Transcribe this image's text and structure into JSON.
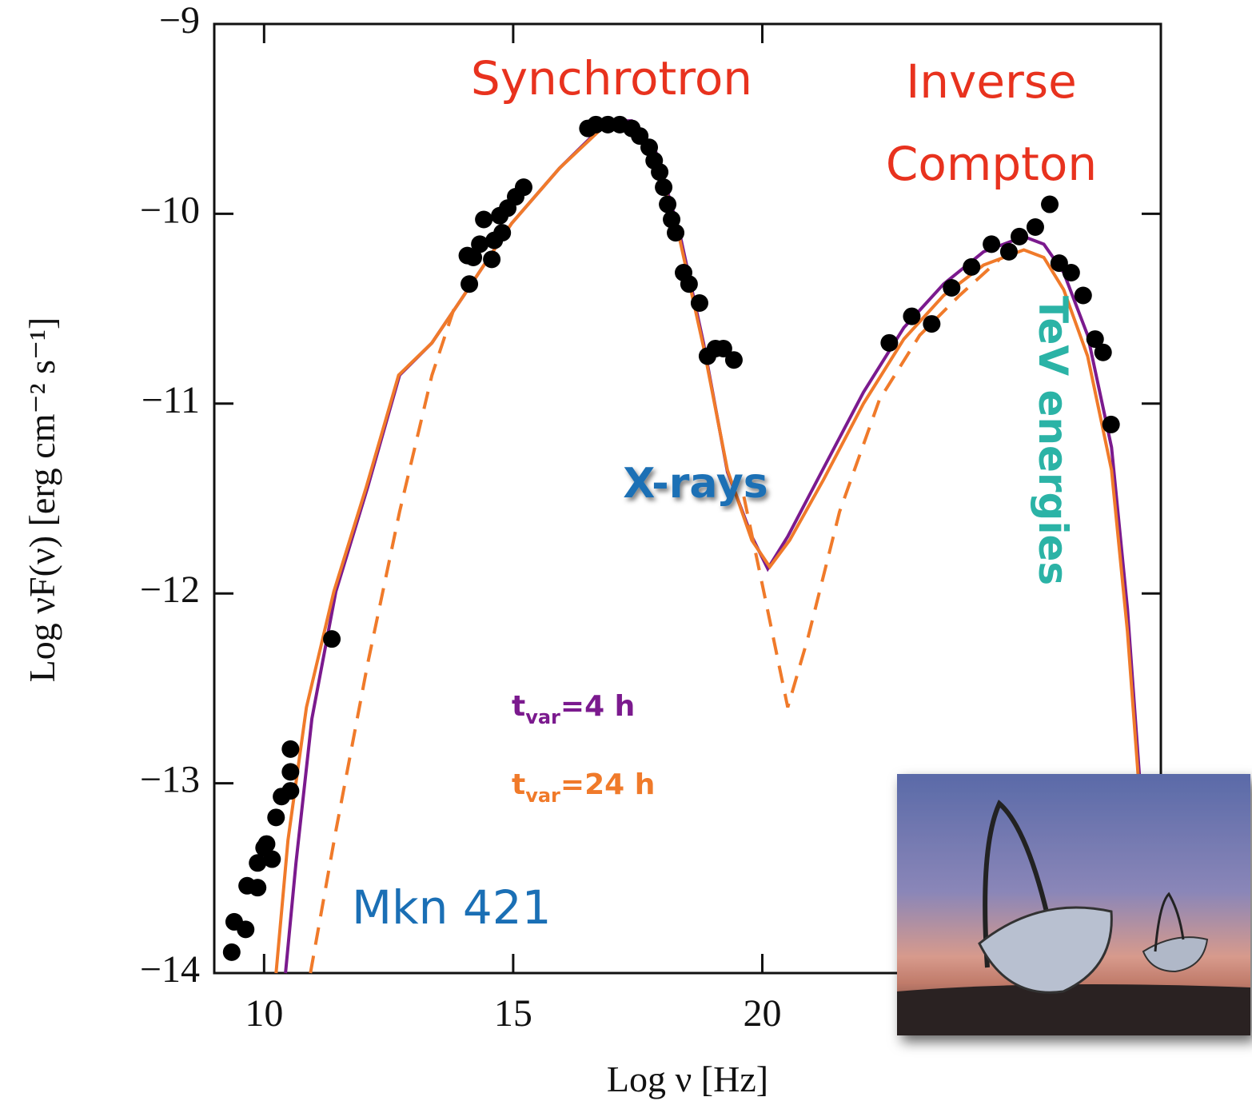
{
  "chart_data": {
    "type": "line",
    "x_label": "Log ν [Hz]",
    "y_label": "Log νF(ν) [erg cm⁻² s⁻¹]",
    "xlim": [
      9,
      28
    ],
    "ylim": [
      -14,
      -9
    ],
    "xticks": [
      10,
      15,
      20
    ],
    "yticks": [
      {
        "value": -9,
        "label": "−9"
      },
      {
        "value": -10,
        "label": "−10"
      },
      {
        "value": -11,
        "label": "−11"
      },
      {
        "value": -12,
        "label": "−12"
      },
      {
        "value": -13,
        "label": "−13"
      },
      {
        "value": -14,
        "label": "−14"
      }
    ],
    "annotations": {
      "synchrotron": "Synchrotron",
      "inverse_compton": [
        "Inverse",
        "Compton"
      ],
      "x_rays": "X-rays",
      "tev": "TeV energies",
      "source": "Mkn 421"
    },
    "points": {
      "color": "#000000",
      "x": [
        9.35,
        9.4,
        9.63,
        9.66,
        9.87,
        9.87,
        10.0,
        10.16,
        10.05,
        10.24,
        10.35,
        10.53,
        10.53,
        10.53,
        11.36,
        14.12,
        14.08,
        14.2,
        14.33,
        14.41,
        14.57,
        14.62,
        14.73,
        14.78,
        14.89,
        15.05,
        15.21,
        16.5,
        16.66,
        16.9,
        17.14,
        17.38,
        17.54,
        17.73,
        17.83,
        17.94,
        18.02,
        18.1,
        18.18,
        18.26,
        18.42,
        18.53,
        18.74,
        18.9,
        19.06,
        19.22,
        19.43,
        22.55,
        23.0,
        23.4,
        23.8,
        24.2,
        24.6,
        24.95,
        25.16,
        25.48,
        25.77,
        25.96,
        26.2,
        26.44,
        26.68,
        26.84,
        27.0
      ],
      "y": [
        -13.89,
        -13.73,
        -13.77,
        -13.54,
        -13.55,
        -13.42,
        -13.34,
        -13.4,
        -13.32,
        -13.18,
        -13.07,
        -13.04,
        -12.94,
        -12.82,
        -12.24,
        -10.37,
        -10.22,
        -10.23,
        -10.16,
        -10.03,
        -10.24,
        -10.14,
        -10.01,
        -10.1,
        -9.97,
        -9.91,
        -9.86,
        -9.55,
        -9.53,
        -9.53,
        -9.53,
        -9.55,
        -9.59,
        -9.65,
        -9.72,
        -9.78,
        -9.86,
        -9.95,
        -10.03,
        -10.1,
        -10.31,
        -10.37,
        -10.47,
        -10.75,
        -10.71,
        -10.71,
        -10.77,
        -10.68,
        -10.54,
        -10.58,
        -10.39,
        -10.28,
        -10.16,
        -10.2,
        -10.12,
        -10.07,
        -9.95,
        -10.26,
        -10.31,
        -10.43,
        -10.66,
        -10.73,
        -11.11
      ]
    },
    "series": [
      {
        "name": "t",
        "name_sub": "var",
        "name_rest": "=4 h",
        "color": "#7b1a8e",
        "style": "solid",
        "x": [
          10.43,
          10.64,
          10.96,
          11.44,
          12.08,
          12.72,
          13.37,
          14.01,
          14.97,
          15.93,
          16.9,
          17.38,
          17.86,
          18.34,
          18.82,
          19.3,
          19.79,
          20.11,
          20.51,
          21.23,
          22.03,
          22.84,
          23.64,
          24.44,
          25.25,
          25.65,
          26.05,
          26.53,
          27.01,
          27.33,
          27.57
        ],
        "values": [
          -14,
          -13.42,
          -12.66,
          -11.99,
          -11.44,
          -10.85,
          -10.68,
          -10.43,
          -10.05,
          -9.76,
          -9.51,
          -9.51,
          -9.67,
          -10.1,
          -10.68,
          -11.36,
          -11.7,
          -11.87,
          -11.7,
          -11.34,
          -10.94,
          -10.6,
          -10.37,
          -10.2,
          -10.12,
          -10.16,
          -10.31,
          -10.64,
          -11.23,
          -12.08,
          -12.96
        ]
      },
      {
        "name": "t",
        "name_sub": "var",
        "name_rest": "=24 h",
        "color": "#f07a2a",
        "style": "solid",
        "x": [
          10.24,
          10.48,
          10.85,
          11.4,
          12.05,
          12.7,
          13.37,
          14.01,
          14.97,
          15.93,
          16.9,
          17.38,
          17.86,
          18.34,
          18.82,
          19.3,
          19.79,
          20.15,
          20.55,
          21.23,
          22.03,
          22.84,
          23.64,
          24.44,
          25.25,
          25.65,
          26.05,
          26.53,
          27.01,
          27.33,
          27.57
        ],
        "values": [
          -14,
          -13.3,
          -12.6,
          -11.99,
          -11.44,
          -10.85,
          -10.68,
          -10.43,
          -10.05,
          -9.76,
          -9.52,
          -9.53,
          -9.7,
          -10.13,
          -10.7,
          -11.35,
          -11.72,
          -11.86,
          -11.72,
          -11.4,
          -11.0,
          -10.66,
          -10.43,
          -10.27,
          -10.19,
          -10.23,
          -10.4,
          -10.75,
          -11.35,
          -12.2,
          -13.05
        ]
      },
      {
        "color": "#f07a2a",
        "style": "dashed",
        "x": [
          10.93,
          11.44,
          12.08,
          12.72,
          13.37,
          13.85,
          16.0,
          19.63,
          20.03,
          20.51,
          20.91,
          21.55,
          22.35,
          23.16,
          23.96,
          24.76
        ],
        "values": [
          -14,
          -13.25,
          -12.37,
          -11.57,
          -10.85,
          -10.47,
          null,
          -11.49,
          -11.99,
          -12.6,
          -12.24,
          -11.57,
          -10.98,
          -10.64,
          -10.43,
          -10.24
        ]
      }
    ]
  }
}
